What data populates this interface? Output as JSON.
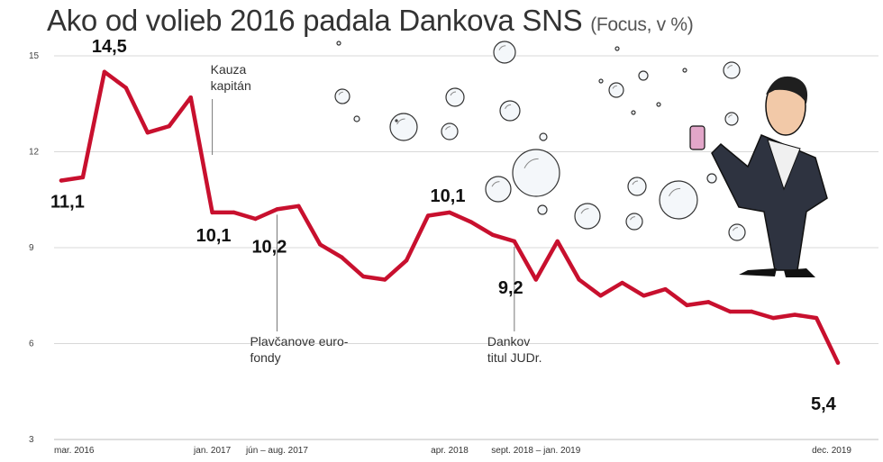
{
  "title": "Ako od volieb 2016 padala Dankova SNS",
  "subtitle": "(Focus, v %)",
  "chart_data": {
    "type": "line",
    "title": "Ako od volieb 2016 padala Dankova SNS",
    "subtitle": "(Focus, v %)",
    "ylim": [
      3,
      15
    ],
    "yticks": [
      3,
      6,
      9,
      12,
      15
    ],
    "grid": true,
    "line_color": "#c8102e",
    "xtick_labels": [
      {
        "label": "mar. 2016",
        "index": 0
      },
      {
        "label": "jan. 2017",
        "index": 7
      },
      {
        "label": "jún – aug. 2017",
        "index": 10
      },
      {
        "label": "apr. 2018",
        "index": 18
      },
      {
        "label": "sept. 2018 – jan. 2019",
        "index": 22
      },
      {
        "label": "dec. 2019",
        "index": 37
      }
    ],
    "series": [
      {
        "values": [
          11.1,
          11.2,
          14.5,
          14.0,
          12.6,
          12.8,
          13.7,
          10.1,
          10.1,
          9.9,
          10.2,
          10.3,
          9.1,
          8.7,
          8.1,
          8.0,
          8.6,
          10.0,
          10.1,
          9.8,
          9.4,
          9.2,
          8.0,
          9.2,
          8.0,
          7.5,
          7.9,
          7.5,
          7.7,
          7.2,
          7.3,
          7.0,
          7.0,
          6.8,
          6.9,
          6.8,
          5.4
        ]
      }
    ],
    "data_labels": [
      {
        "index": 0,
        "text": "11,1"
      },
      {
        "index": 2,
        "text": "14,5"
      },
      {
        "index": 7,
        "text": "10,1"
      },
      {
        "index": 10,
        "text": "10,2"
      },
      {
        "index": 18,
        "text": "10,1"
      },
      {
        "index": 21,
        "text": "9,2"
      },
      {
        "index": 36,
        "text": "5,4"
      }
    ],
    "annotations": [
      {
        "index": 7,
        "lines": [
          "Kauza",
          "kapitán"
        ]
      },
      {
        "index": 10,
        "lines": [
          "Plavčanove euro-",
          "fondy"
        ]
      },
      {
        "index": 21,
        "lines": [
          "Dankov",
          "titul JUDr."
        ]
      }
    ]
  }
}
